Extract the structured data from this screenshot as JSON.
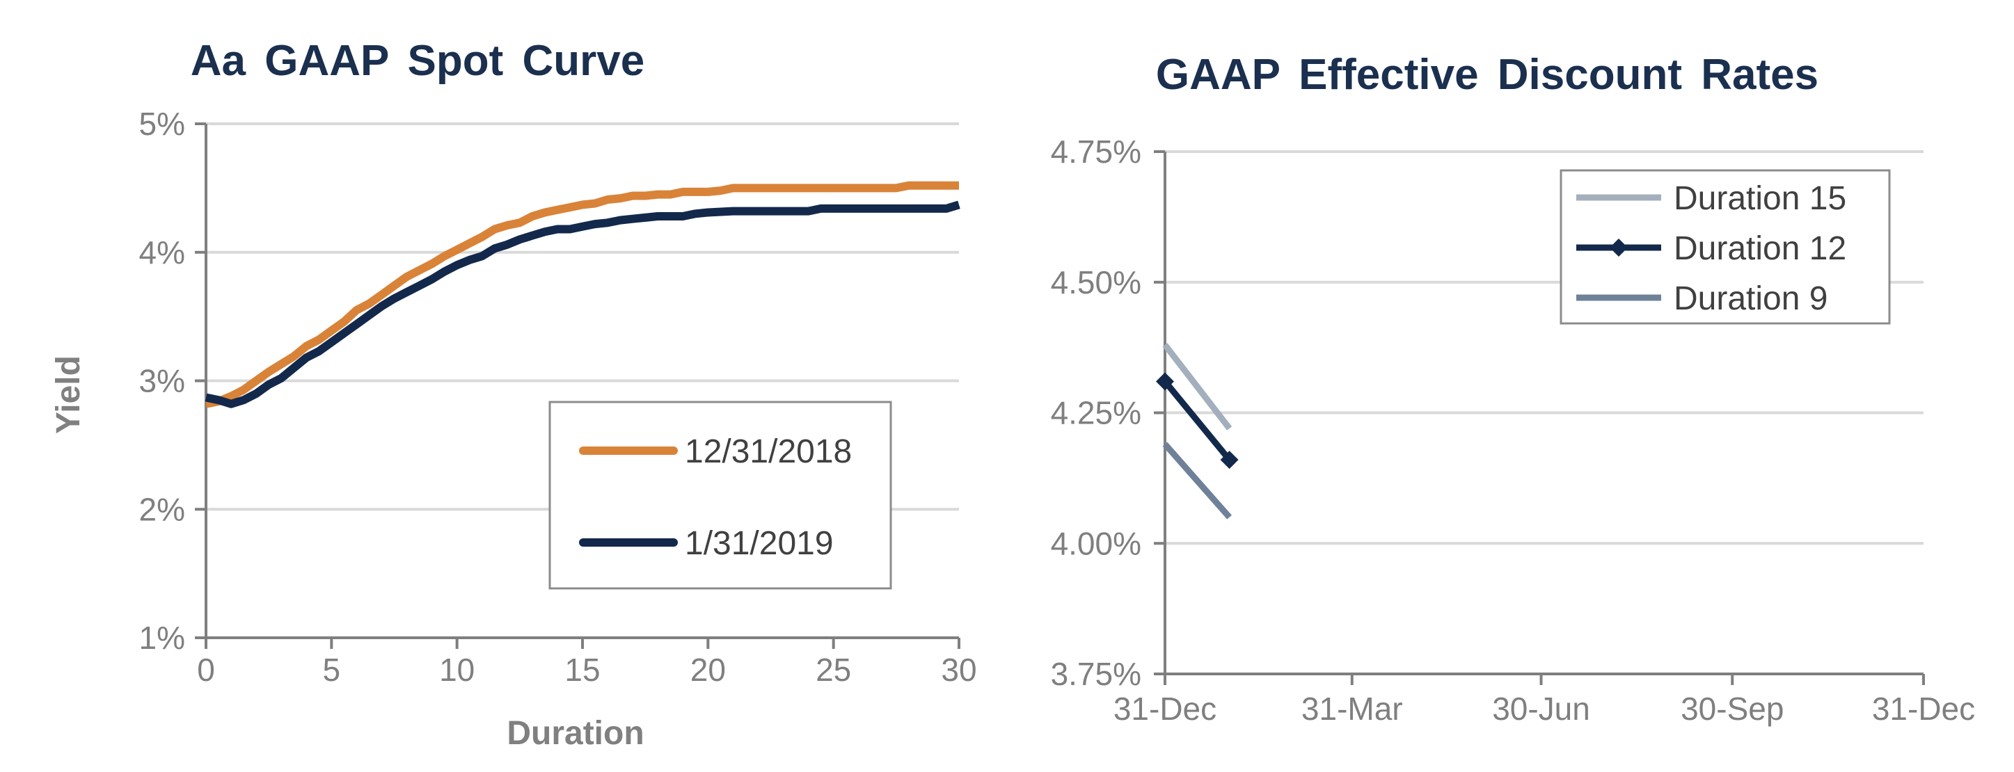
{
  "chart_data": [
    {
      "type": "line",
      "title": "Aa GAAP Spot Curve",
      "xlabel": "Duration",
      "ylabel": "Yield",
      "xlim": [
        0,
        30
      ],
      "ylim": [
        1,
        5
      ],
      "x_ticks": [
        "0",
        "5",
        "10",
        "15",
        "20",
        "25",
        "30"
      ],
      "y_ticks": [
        "1%",
        "2%",
        "3%",
        "4%",
        "5%"
      ],
      "grid": "horizontal",
      "legend": "center-right",
      "series": [
        {
          "name": "12/31/2018",
          "color": "#d98338",
          "x": [
            0,
            0.5,
            1,
            1.5,
            2,
            2.5,
            3,
            3.5,
            4,
            4.5,
            5,
            5.5,
            6,
            6.5,
            7,
            7.5,
            8,
            8.5,
            9,
            9.5,
            10,
            10.5,
            11,
            11.5,
            12,
            12.5,
            13,
            13.5,
            14,
            14.5,
            15,
            15.5,
            16,
            16.5,
            17,
            17.5,
            18,
            18.5,
            19,
            19.5,
            20,
            20.5,
            21,
            21.5,
            22,
            23,
            24,
            25,
            26,
            27,
            27.5,
            28,
            28.5,
            29,
            29.5,
            30
          ],
          "y": [
            2.82,
            2.84,
            2.88,
            2.93,
            3.0,
            3.07,
            3.13,
            3.19,
            3.27,
            3.32,
            3.39,
            3.46,
            3.55,
            3.6,
            3.67,
            3.74,
            3.81,
            3.86,
            3.91,
            3.97,
            4.02,
            4.07,
            4.12,
            4.18,
            4.21,
            4.23,
            4.28,
            4.31,
            4.33,
            4.35,
            4.37,
            4.38,
            4.41,
            4.42,
            4.44,
            4.44,
            4.45,
            4.45,
            4.47,
            4.47,
            4.47,
            4.48,
            4.5,
            4.5,
            4.5,
            4.5,
            4.5,
            4.5,
            4.5,
            4.5,
            4.5,
            4.52,
            4.52,
            4.52,
            4.52,
            4.52
          ]
        },
        {
          "name": "1/31/2019",
          "color": "#13294b",
          "x": [
            0,
            0.5,
            1,
            1.5,
            2,
            2.5,
            3,
            3.5,
            4,
            4.5,
            5,
            5.5,
            6,
            6.5,
            7,
            7.5,
            8,
            8.5,
            9,
            9.5,
            10,
            10.5,
            11,
            11.5,
            12,
            12.5,
            13,
            13.5,
            14,
            14.5,
            15,
            15.5,
            16,
            16.5,
            17,
            17.5,
            18,
            18.5,
            19,
            19.5,
            20,
            21,
            22,
            23,
            24,
            24.5,
            25,
            26,
            27,
            28,
            29,
            29.5,
            30
          ],
          "y": [
            2.87,
            2.85,
            2.82,
            2.85,
            2.9,
            2.97,
            3.02,
            3.1,
            3.18,
            3.23,
            3.3,
            3.37,
            3.44,
            3.51,
            3.58,
            3.64,
            3.69,
            3.74,
            3.79,
            3.85,
            3.9,
            3.94,
            3.97,
            4.03,
            4.06,
            4.1,
            4.13,
            4.16,
            4.18,
            4.18,
            4.2,
            4.22,
            4.23,
            4.25,
            4.26,
            4.27,
            4.28,
            4.28,
            4.28,
            4.3,
            4.31,
            4.32,
            4.32,
            4.32,
            4.32,
            4.34,
            4.34,
            4.34,
            4.34,
            4.34,
            4.34,
            4.34,
            4.37
          ]
        }
      ]
    },
    {
      "type": "line",
      "title": "GAAP Effective Discount Rates",
      "xlabel": "",
      "ylabel": "",
      "x_categories": [
        "31-Dec",
        "31-Mar",
        "30-Jun",
        "30-Sep",
        "31-Dec"
      ],
      "x_positions": [
        0,
        90,
        181,
        273,
        365
      ],
      "ylim": [
        3.75,
        4.75
      ],
      "y_ticks": [
        "3.75%",
        "4.00%",
        "4.25%",
        "4.50%",
        "4.75%"
      ],
      "grid": "horizontal",
      "legend": "top-right",
      "series": [
        {
          "name": "Duration 15",
          "color": "#a4afbd",
          "marker": "none",
          "x": [
            0,
            31
          ],
          "y": [
            4.38,
            4.22
          ]
        },
        {
          "name": "Duration 12",
          "color": "#13294b",
          "marker": "diamond",
          "x": [
            0,
            31
          ],
          "y": [
            4.31,
            4.16
          ]
        },
        {
          "name": "Duration 9",
          "color": "#6f8198",
          "marker": "none",
          "x": [
            0,
            31
          ],
          "y": [
            4.19,
            4.05
          ]
        }
      ]
    }
  ]
}
